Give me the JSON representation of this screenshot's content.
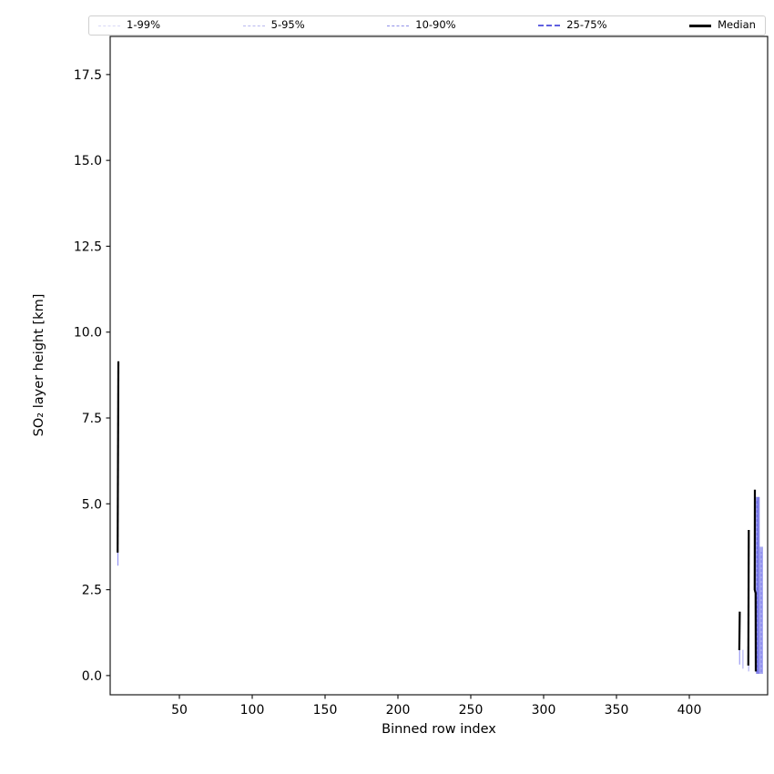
{
  "chart_data": {
    "type": "line",
    "title": "",
    "xlabel": "Binned row index",
    "ylabel": "SO₂ layer height [km]",
    "xlim": [
      2.5,
      453.75
    ],
    "ylim": [
      -0.56,
      18.61
    ],
    "grid": false,
    "x_ticks": [
      {
        "value": 50,
        "label": "50"
      },
      {
        "value": 100,
        "label": "100"
      },
      {
        "value": 150,
        "label": "150"
      },
      {
        "value": 200,
        "label": "200"
      },
      {
        "value": 250,
        "label": "250"
      },
      {
        "value": 300,
        "label": "300"
      },
      {
        "value": 350,
        "label": "350"
      },
      {
        "value": 400,
        "label": "400"
      }
    ],
    "y_ticks": [
      {
        "value": 0,
        "label": "0.0"
      },
      {
        "value": 2.5,
        "label": "2.5"
      },
      {
        "value": 5,
        "label": "5.0"
      },
      {
        "value": 7.5,
        "label": "7.5"
      },
      {
        "value": 10,
        "label": "10.0"
      },
      {
        "value": 12.5,
        "label": "12.5"
      },
      {
        "value": 15,
        "label": "15.0"
      },
      {
        "value": 17.5,
        "label": "17.5"
      }
    ],
    "legend": {
      "position": "top-expanded",
      "entries": [
        {
          "label": "1-99%",
          "color": "#d8d8f6",
          "line_width": 1.3,
          "dashed": true
        },
        {
          "label": "5-95%",
          "color": "#b9b9f0",
          "line_width": 1.3,
          "dashed": true
        },
        {
          "label": "10-90%",
          "color": "#8f8fe9",
          "line_width": 1.5,
          "dashed": true
        },
        {
          "label": "25-75%",
          "color": "#6060e0",
          "line_width": 2.4,
          "dashed": true
        },
        {
          "label": "Median",
          "color": "#000000",
          "line_width": 3.0,
          "dashed": false
        }
      ]
    },
    "series": [
      {
        "name": "Median",
        "color": "#000000",
        "line_width": 2.2,
        "segments": [
          [
            [
              7.6,
              3.58
            ],
            [
              8.1,
              9.15
            ]
          ],
          [
            [
              434.3,
              0.74
            ],
            [
              434.6,
              1.86
            ]
          ],
          [
            [
              440.5,
              0.29
            ],
            [
              440.8,
              4.24
            ]
          ],
          [
            [
              445.0,
              5.41
            ],
            [
              444.9,
              2.5
            ],
            [
              445.5,
              2.4
            ],
            [
              445.6,
              0.12
            ]
          ]
        ]
      }
    ],
    "percentile_bands": [
      {
        "name": "25-75%",
        "x0": 7.5,
        "x1": 8.0,
        "y0": 3.2,
        "y1": 3.65,
        "color": "#7b7bf0",
        "opacity": 0.9
      },
      {
        "name": "25-75%",
        "x0": 434.2,
        "x1": 434.7,
        "y0": 0.32,
        "y1": 0.8,
        "color": "#7b7bf0",
        "opacity": 0.9
      },
      {
        "name": "10-90%",
        "x0": 436.5,
        "x1": 437.0,
        "y0": 0.2,
        "y1": 0.75,
        "color": "#8d8dee",
        "opacity": 0.8
      },
      {
        "name": "10-90%",
        "x0": 440.4,
        "x1": 440.9,
        "y0": 0.12,
        "y1": 0.32,
        "color": "#8d8dee",
        "opacity": 0.8
      },
      {
        "name": "25-75%",
        "x0": 445.8,
        "x1": 448.3,
        "y0": 0.05,
        "y1": 5.2,
        "color": "#6f6fe6",
        "opacity": 0.85
      },
      {
        "name": "10-90%",
        "x0": 448.3,
        "x1": 450.6,
        "y0": 0.05,
        "y1": 3.75,
        "color": "#9090ee",
        "opacity": 0.8
      }
    ],
    "band_strokes": [
      {
        "x": 446.4,
        "y0": 0.1,
        "y1": 5.1,
        "color": "#5c5ce2"
      },
      {
        "x": 449.4,
        "y0": 0.1,
        "y1": 3.6,
        "color": "#7a7aea"
      }
    ],
    "axis_color": "#1a1a1a"
  }
}
